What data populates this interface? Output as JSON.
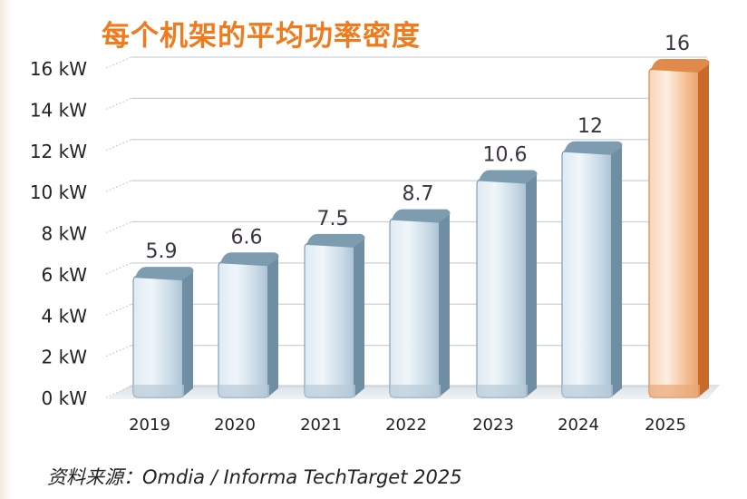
{
  "title": "每个机架的平均功率密度",
  "source": "资料来源：Omdia / Informa TechTarget 2025",
  "colors": {
    "title": "#f07a1c",
    "bar_normal_light": "#e8f1f7",
    "bar_normal_mid": "#c6d8e6",
    "bar_normal_dark": "#6d8ea4",
    "bar_highlight_light": "#fbe3cf",
    "bar_highlight_mid": "#f6c49b",
    "bar_highlight_dark": "#d9742c",
    "grid": "#c9d2da",
    "label": "#3b3340"
  },
  "chart_data": {
    "type": "bar",
    "title": "每个机架的平均功率密度",
    "categories": [
      "2019",
      "2020",
      "2021",
      "2022",
      "2023",
      "2024",
      "2025"
    ],
    "values": [
      5.9,
      6.6,
      7.5,
      8.7,
      10.6,
      12,
      16
    ],
    "value_labels": [
      "5.9",
      "6.6",
      "7.5",
      "8.7",
      "10.6",
      "12",
      "16"
    ],
    "highlight_index": 6,
    "yticks": [
      0,
      2,
      4,
      6,
      8,
      10,
      12,
      14,
      16
    ],
    "ytick_labels": [
      "0 kW",
      "2 kW",
      "4 kW",
      "6 kW",
      "8 kW",
      "10 kW",
      "12 kW",
      "14 kW",
      "16 kW"
    ],
    "ylim": [
      0,
      16
    ],
    "grid": true,
    "xlabel": "",
    "ylabel": ""
  }
}
